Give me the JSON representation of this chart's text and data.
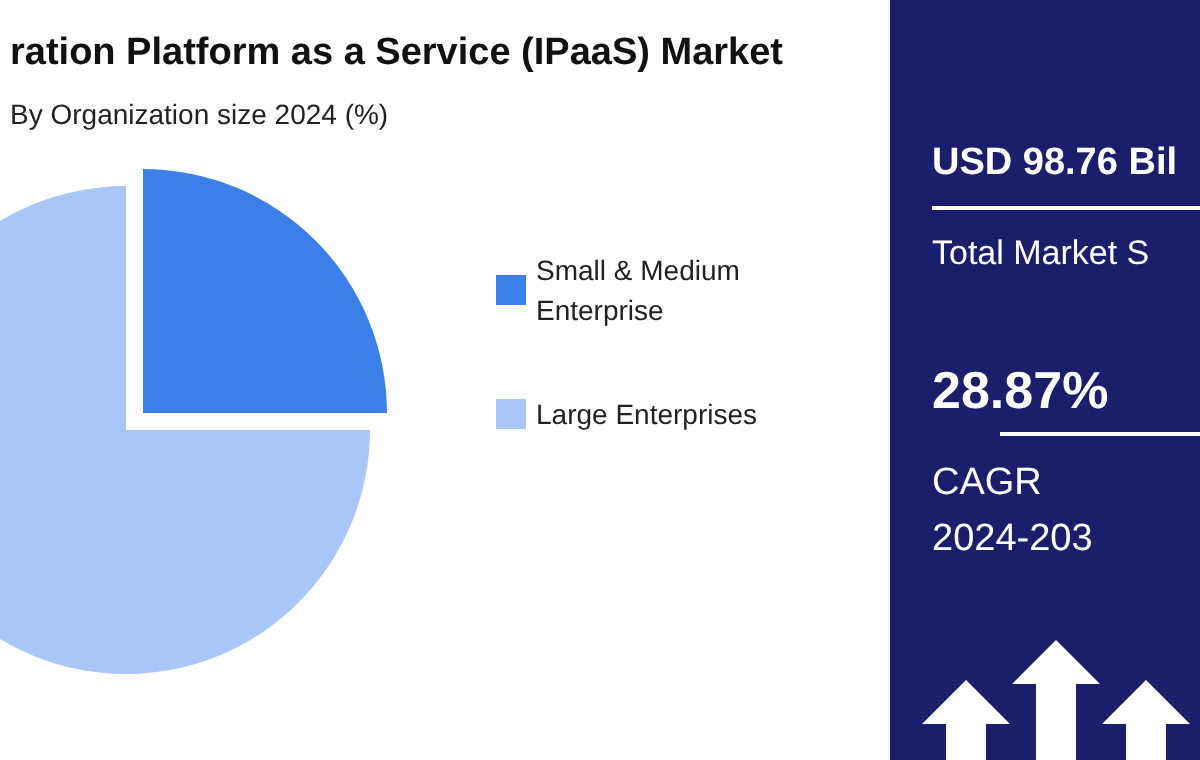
{
  "chart_data": {
    "type": "pie",
    "title": "ration Platform as a Service (IPaaS) Market",
    "subtitle": "By Organization size 2024 (%)",
    "categories": [
      "Small & Medium Enterprise",
      "Large Enterprises"
    ],
    "values": [
      25,
      75
    ],
    "colors": [
      "#3d7fe8",
      "#a8c6f7"
    ],
    "legend": "right",
    "annotations": [
      "USD 98.76 Bil",
      "Total Market S",
      "28.87%",
      "CAGR",
      "2024-203"
    ]
  }
}
